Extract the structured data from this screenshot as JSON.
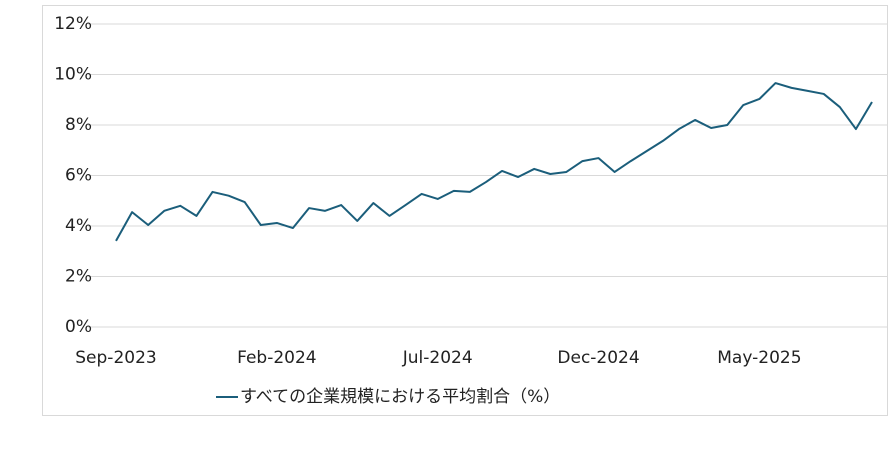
{
  "chart_data": {
    "type": "line",
    "categories": [
      "Sep-2023",
      null,
      null,
      null,
      null,
      null,
      null,
      null,
      null,
      null,
      "Feb-2024",
      null,
      null,
      null,
      null,
      null,
      null,
      null,
      null,
      null,
      "Jul-2024",
      null,
      null,
      null,
      null,
      null,
      null,
      null,
      null,
      null,
      "Dec-2024",
      null,
      null,
      null,
      null,
      null,
      null,
      null,
      null,
      null,
      "May-2025",
      null,
      null,
      null,
      null,
      null,
      null,
      null
    ],
    "series": [
      {
        "name": "すべての企業規模における平均割合（%）",
        "color": "#1b5e7b",
        "values": [
          3.41,
          4.55,
          4.04,
          4.6,
          4.8,
          4.4,
          5.35,
          5.2,
          4.95,
          4.04,
          4.12,
          3.92,
          4.71,
          4.6,
          4.83,
          4.2,
          4.91,
          4.4,
          4.83,
          5.27,
          5.07,
          5.39,
          5.35,
          5.74,
          6.18,
          5.94,
          6.26,
          6.06,
          6.14,
          6.57,
          6.69,
          6.14,
          6.57,
          6.97,
          7.37,
          7.84,
          8.2,
          7.88,
          8.0,
          8.79,
          9.03,
          9.66,
          9.47,
          9.35,
          9.23,
          8.71,
          7.84,
          8.91
        ]
      }
    ],
    "ylim": [
      0,
      12
    ],
    "yticks": [
      {
        "value": 0,
        "label": "0%"
      },
      {
        "value": 2,
        "label": "2%"
      },
      {
        "value": 4,
        "label": "4%"
      },
      {
        "value": 6,
        "label": "6%"
      },
      {
        "value": 8,
        "label": "8%"
      },
      {
        "value": 10,
        "label": "10%"
      },
      {
        "value": 12,
        "label": "12%"
      }
    ],
    "grid": true,
    "legend": "bottom"
  }
}
